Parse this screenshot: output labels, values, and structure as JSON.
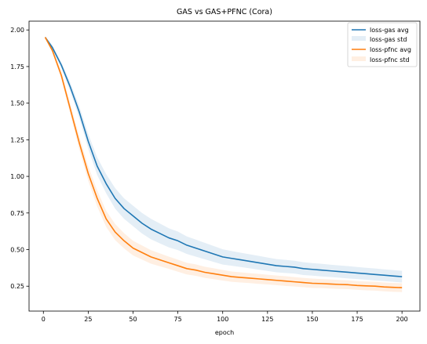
{
  "chart_data": {
    "type": "line",
    "title": "GAS vs GAS+PFNC (Cora)",
    "xlabel": "epoch",
    "ylabel": "",
    "xlim": [
      -8,
      210
    ],
    "ylim": [
      0.08,
      2.06
    ],
    "xticks": [
      0,
      25,
      50,
      75,
      100,
      125,
      150,
      175,
      200
    ],
    "yticks": [
      0.25,
      0.5,
      0.75,
      1.0,
      1.25,
      1.5,
      1.75,
      2.0
    ],
    "ytick_labels": [
      "0.25",
      "0.50",
      "0.75",
      "1.00",
      "1.25",
      "1.50",
      "1.75",
      "2.00"
    ],
    "grid": false,
    "legend_position": "top-right",
    "legend": [
      "loss-gas avg",
      "loss-gas std",
      "loss-pfnc avg",
      "loss-pfnc std"
    ],
    "x": [
      1,
      5,
      10,
      15,
      20,
      25,
      30,
      35,
      40,
      45,
      50,
      55,
      60,
      65,
      70,
      75,
      80,
      85,
      90,
      95,
      100,
      105,
      110,
      115,
      120,
      125,
      130,
      135,
      140,
      145,
      150,
      155,
      160,
      165,
      170,
      175,
      180,
      185,
      190,
      195,
      200
    ],
    "series": [
      {
        "name": "loss-gas avg",
        "color": "#1f77b4",
        "values": [
          1.95,
          1.88,
          1.76,
          1.61,
          1.44,
          1.24,
          1.07,
          0.95,
          0.85,
          0.78,
          0.73,
          0.68,
          0.64,
          0.61,
          0.58,
          0.56,
          0.53,
          0.51,
          0.49,
          0.47,
          0.45,
          0.44,
          0.43,
          0.42,
          0.41,
          0.4,
          0.39,
          0.385,
          0.38,
          0.37,
          0.365,
          0.36,
          0.355,
          0.35,
          0.345,
          0.34,
          0.335,
          0.33,
          0.325,
          0.32,
          0.315
        ],
        "std": [
          0.005,
          0.015,
          0.02,
          0.03,
          0.04,
          0.05,
          0.06,
          0.065,
          0.07,
          0.07,
          0.07,
          0.07,
          0.07,
          0.068,
          0.065,
          0.063,
          0.06,
          0.058,
          0.056,
          0.054,
          0.052,
          0.05,
          0.049,
          0.048,
          0.047,
          0.046,
          0.045,
          0.045,
          0.044,
          0.044,
          0.043,
          0.043,
          0.042,
          0.042,
          0.042,
          0.041,
          0.041,
          0.041,
          0.04,
          0.04,
          0.04
        ],
        "std_name": "loss-gas std",
        "std_color": "#1f77b4"
      },
      {
        "name": "loss-pfnc avg",
        "color": "#ff7f0e",
        "values": [
          1.95,
          1.86,
          1.69,
          1.46,
          1.23,
          1.02,
          0.85,
          0.71,
          0.62,
          0.56,
          0.51,
          0.48,
          0.45,
          0.43,
          0.41,
          0.39,
          0.37,
          0.36,
          0.345,
          0.335,
          0.325,
          0.315,
          0.31,
          0.305,
          0.3,
          0.295,
          0.29,
          0.285,
          0.28,
          0.275,
          0.27,
          0.268,
          0.265,
          0.262,
          0.26,
          0.255,
          0.252,
          0.25,
          0.245,
          0.242,
          0.24
        ],
        "std": [
          0.005,
          0.015,
          0.025,
          0.035,
          0.045,
          0.05,
          0.055,
          0.055,
          0.055,
          0.052,
          0.05,
          0.048,
          0.046,
          0.044,
          0.042,
          0.041,
          0.04,
          0.039,
          0.038,
          0.037,
          0.036,
          0.035,
          0.035,
          0.034,
          0.034,
          0.033,
          0.033,
          0.033,
          0.032,
          0.032,
          0.032,
          0.031,
          0.031,
          0.031,
          0.03,
          0.03,
          0.03,
          0.03,
          0.03,
          0.03,
          0.03
        ],
        "std_name": "loss-pfnc std",
        "std_color": "#ff7f0e"
      }
    ]
  }
}
